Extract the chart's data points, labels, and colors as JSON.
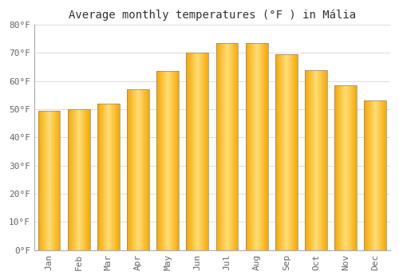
{
  "title": "Average monthly temperatures (°F ) in Mália",
  "months": [
    "Jan",
    "Feb",
    "Mar",
    "Apr",
    "May",
    "Jun",
    "Jul",
    "Aug",
    "Sep",
    "Oct",
    "Nov",
    "Dec"
  ],
  "values": [
    49.5,
    50.0,
    52.0,
    57.0,
    63.5,
    70.0,
    73.5,
    73.5,
    69.5,
    64.0,
    58.5,
    53.0
  ],
  "ylim": [
    0,
    80
  ],
  "yticks": [
    0,
    10,
    20,
    30,
    40,
    50,
    60,
    70,
    80
  ],
  "ytick_labels": [
    "0°F",
    "10°F",
    "20°F",
    "30°F",
    "40°F",
    "50°F",
    "60°F",
    "70°F",
    "80°F"
  ],
  "bar_color_main": "#F5A800",
  "bar_color_light": "#FFDD88",
  "bar_edge_color": "#888888",
  "background_color": "#FFFFFF",
  "plot_bg_color": "#FFFFFF",
  "grid_color": "#DDDDDD",
  "title_fontsize": 10,
  "tick_fontsize": 8,
  "title_color": "#333333",
  "tick_label_color": "#666666",
  "bar_width": 0.75
}
